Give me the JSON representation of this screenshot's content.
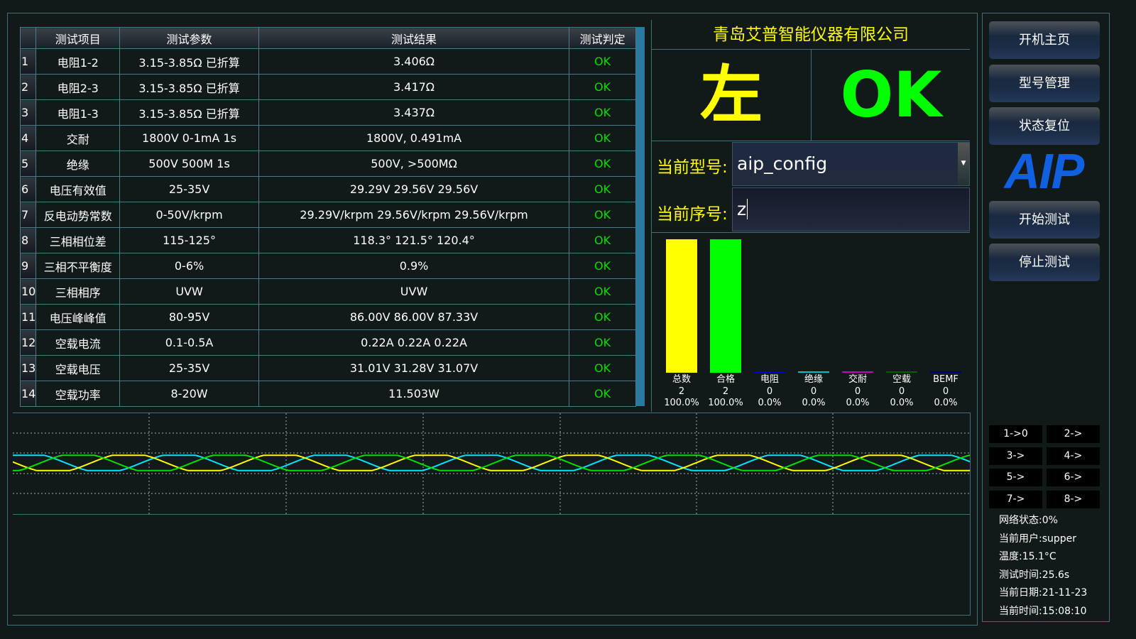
{
  "table": {
    "headers": [
      "",
      "测试项目",
      "测试参数",
      "测试结果",
      "测试判定"
    ],
    "rows": [
      [
        "1",
        "电阻1-2",
        "3.15-3.85Ω 已折算",
        "3.406Ω",
        "OK"
      ],
      [
        "2",
        "电阻2-3",
        "3.15-3.85Ω 已折算",
        "3.417Ω",
        "OK"
      ],
      [
        "3",
        "电阻1-3",
        "3.15-3.85Ω 已折算",
        "3.437Ω",
        "OK"
      ],
      [
        "4",
        "交耐",
        "1800V 0-1mA 1s",
        "1800V, 0.491mA",
        "OK"
      ],
      [
        "5",
        "绝缘",
        "500V 500M 1s",
        "500V, >500MΩ",
        "OK"
      ],
      [
        "6",
        "电压有效值",
        "25-35V",
        "29.29V  29.56V  29.56V",
        "OK"
      ],
      [
        "7",
        "反电动势常数",
        "0-50V/krpm",
        "29.29V/krpm  29.56V/krpm  29.56V/krpm",
        "OK"
      ],
      [
        "8",
        "三相相位差",
        "115-125°",
        "118.3°  121.5°  120.4°",
        "OK"
      ],
      [
        "9",
        "三相不平衡度",
        "0-6%",
        "0.9%",
        "OK"
      ],
      [
        "10",
        "三相相序",
        "UVW",
        "UVW",
        "OK"
      ],
      [
        "11",
        "电压峰峰值",
        "80-95V",
        "86.00V  86.00V  87.33V",
        "OK"
      ],
      [
        "12",
        "空载电流",
        "0.1-0.5A",
        "0.22A  0.22A  0.22A",
        "OK"
      ],
      [
        "13",
        "空载电压",
        "25-35V",
        "31.01V  31.28V  31.07V",
        "OK"
      ],
      [
        "14",
        "空载功率",
        "8-20W",
        "11.503W",
        "OK"
      ]
    ]
  },
  "company": "青岛艾普智能仪器有限公司",
  "side": "左",
  "verdict": "OK",
  "model_label": "当前型号:",
  "model_value": "aip_config",
  "serial_label": "当前序号:",
  "serial_value": "z",
  "chart_data": {
    "type": "bar",
    "categories": [
      "总数",
      "合格",
      "电阻",
      "绝缘",
      "交耐",
      "空载",
      "BEMF"
    ],
    "values": [
      2,
      2,
      0,
      0,
      0,
      0,
      0
    ],
    "percents": [
      "100.0%",
      "100.0%",
      "0.0%",
      "0.0%",
      "0.0%",
      "0.0%",
      "0.0%"
    ],
    "colors": [
      "#ffff00",
      "#00ff00",
      "#0000cc",
      "#00c0c0",
      "#c000c0",
      "#006000",
      "#000080"
    ]
  },
  "waveform": {
    "colors": [
      "#00e5ff",
      "#ffff00",
      "#00e000"
    ]
  },
  "buttons": [
    "开机主页",
    "型号管理",
    "状态复位",
    "开始测试",
    "停止测试"
  ],
  "logo": "AIP",
  "small_buttons": [
    "1->0",
    "2->",
    "3->",
    "4->",
    "5->",
    "6->",
    "7->",
    "8->"
  ],
  "status": [
    "网络状态:0%",
    "当前用户:supper",
    "温度:15.1°C",
    "测试时间:25.6s",
    "当前日期:21-11-23",
    "当前时间:15:08:10"
  ]
}
